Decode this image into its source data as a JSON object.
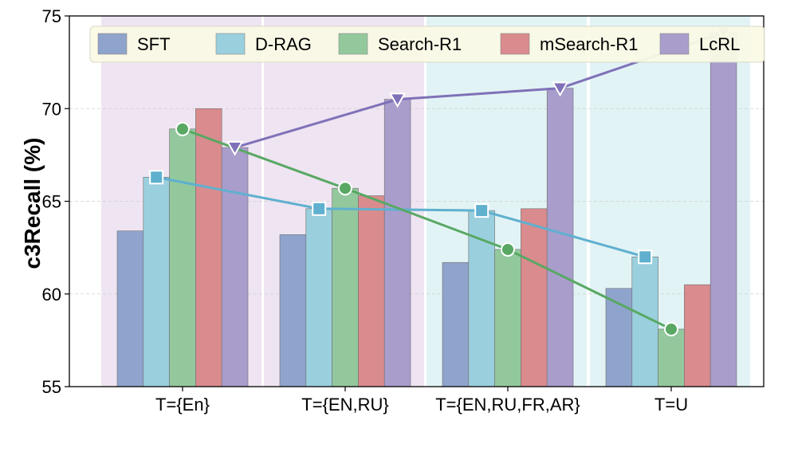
{
  "chart_data": {
    "type": "bar",
    "ylabel": "c3Recall (%)",
    "xlabel": "",
    "ylim": [
      55,
      75
    ],
    "yticks": [
      55,
      60,
      65,
      70,
      75
    ],
    "grid": "horizontal dashed",
    "legend_position": "top",
    "categories": [
      "T={En}",
      "T={EN,RU}",
      "T={EN,RU,FR,AR}",
      "T=U"
    ],
    "category_backgrounds": [
      "#efe4f1",
      "#efe4f1",
      "#e2f3f5",
      "#e2f3f5"
    ],
    "series": [
      {
        "name": "SFT",
        "color": "#8fa4cc",
        "values": [
          63.4,
          63.2,
          61.7,
          60.3
        ]
      },
      {
        "name": "D-RAG",
        "color": "#9acfdd",
        "values": [
          66.3,
          64.6,
          64.5,
          62.0
        ]
      },
      {
        "name": "Search-R1",
        "color": "#93c89d",
        "values": [
          68.9,
          65.7,
          62.4,
          58.1
        ]
      },
      {
        "name": "mSearch-R1",
        "color": "#d98b8e",
        "values": [
          70.0,
          65.3,
          64.6,
          60.5
        ]
      },
      {
        "name": "LcRL",
        "color": "#a99dcc",
        "values": [
          67.9,
          70.5,
          71.1,
          74.1
        ]
      }
    ],
    "lines": [
      {
        "series": "D-RAG",
        "color": "#5fb0cf",
        "marker": "square",
        "values": [
          66.3,
          64.6,
          64.5,
          62.0
        ]
      },
      {
        "series": "Search-R1",
        "color": "#58a863",
        "marker": "circle",
        "values": [
          68.9,
          65.7,
          62.4,
          58.1
        ]
      },
      {
        "series": "LcRL",
        "color": "#7f71b8",
        "marker": "triangle-down",
        "values": [
          67.9,
          70.5,
          71.1,
          74.1
        ]
      }
    ]
  }
}
